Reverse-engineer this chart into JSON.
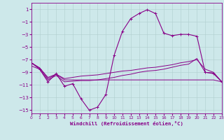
{
  "xlabel": "Windchill (Refroidissement éolien,°C)",
  "xlim": [
    0,
    23
  ],
  "ylim": [
    -15.5,
    2.0
  ],
  "yticks": [
    1,
    -1,
    -3,
    -5,
    -7,
    -9,
    -11,
    -13,
    -15
  ],
  "xticks": [
    0,
    1,
    2,
    3,
    4,
    5,
    6,
    7,
    8,
    9,
    10,
    11,
    12,
    13,
    14,
    15,
    16,
    17,
    18,
    19,
    20,
    21,
    22,
    23
  ],
  "bg_color": "#cde8ea",
  "line_color": "#880088",
  "grid_color": "#b0cece",
  "main_x": [
    0,
    1,
    2,
    3,
    4,
    5,
    6,
    7,
    8,
    9,
    10,
    11,
    12,
    13,
    14,
    15,
    16,
    17,
    18,
    19,
    20,
    21,
    22,
    23
  ],
  "main_y": [
    -7.5,
    -8.5,
    -10.5,
    -9.2,
    -11.2,
    -10.8,
    -13.2,
    -15.0,
    -14.5,
    -12.5,
    -6.3,
    -2.5,
    -0.5,
    0.3,
    0.9,
    0.3,
    -2.8,
    -3.2,
    -3.0,
    -3.0,
    -3.3,
    -9.0,
    -9.2,
    -10.5
  ],
  "line2_x": [
    0,
    1,
    2,
    3,
    4,
    5,
    6,
    7,
    8,
    9,
    10,
    11,
    12,
    13,
    14,
    15,
    16,
    17,
    18,
    19,
    20,
    21,
    22,
    23
  ],
  "line2_y": [
    -7.5,
    -8.3,
    -10.0,
    -9.3,
    -10.2,
    -10.2,
    -10.2,
    -10.2,
    -10.2,
    -10.2,
    -10.2,
    -10.2,
    -10.2,
    -10.2,
    -10.2,
    -10.2,
    -10.2,
    -10.2,
    -10.2,
    -10.2,
    -10.2,
    -10.2,
    -10.2,
    -10.5
  ],
  "line3_x": [
    0,
    1,
    2,
    3,
    4,
    5,
    6,
    7,
    8,
    9,
    10,
    11,
    12,
    13,
    14,
    15,
    16,
    17,
    18,
    19,
    20,
    21,
    22,
    23
  ],
  "line3_y": [
    -7.5,
    -8.3,
    -9.8,
    -9.3,
    -10.0,
    -9.8,
    -9.6,
    -9.5,
    -9.4,
    -9.2,
    -9.0,
    -8.8,
    -8.7,
    -8.5,
    -8.3,
    -8.2,
    -8.0,
    -7.8,
    -7.5,
    -7.3,
    -7.0,
    -8.5,
    -9.0,
    -10.5
  ],
  "line4_x": [
    0,
    1,
    2,
    3,
    4,
    5,
    6,
    7,
    8,
    9,
    10,
    11,
    12,
    13,
    14,
    15,
    16,
    17,
    18,
    19,
    20,
    21,
    22,
    23
  ],
  "line4_y": [
    -8.0,
    -8.5,
    -10.2,
    -9.5,
    -10.5,
    -10.4,
    -10.3,
    -10.3,
    -10.2,
    -10.0,
    -9.8,
    -9.5,
    -9.3,
    -9.0,
    -8.8,
    -8.7,
    -8.5,
    -8.2,
    -7.9,
    -7.7,
    -6.8,
    -9.0,
    -9.1,
    -10.5
  ]
}
